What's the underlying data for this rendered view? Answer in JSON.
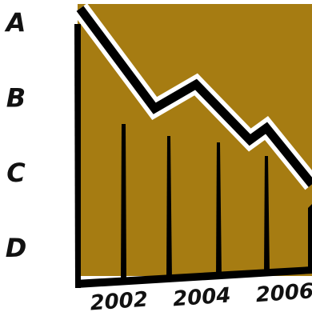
{
  "chart_data": {
    "type": "line",
    "x": [
      2001,
      2002.8,
      2003.8,
      2005.1,
      2005.5,
      2006.6
    ],
    "series": [
      {
        "color": "#000000",
        "values": [
          4.21,
          2.88,
          3.2,
          2.46,
          2.62,
          1.87
        ]
      }
    ],
    "xlim": [
      2001,
      2006.6
    ],
    "xticks": [
      2002,
      2004,
      2006
    ],
    "ylim": [
      0.65,
      4.27
    ],
    "yticks": [
      {
        "value": 1,
        "label": "D"
      },
      {
        "value": 2,
        "label": "C"
      },
      {
        "value": 3,
        "label": "B"
      },
      {
        "value": 4,
        "label": "A"
      }
    ],
    "fill": "#a67c12"
  }
}
